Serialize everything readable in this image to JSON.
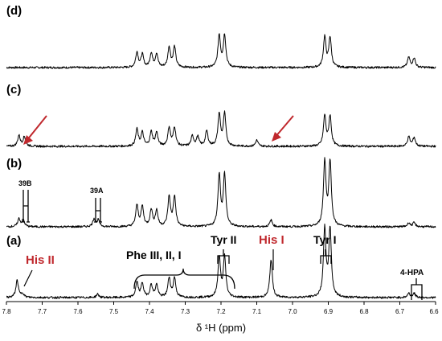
{
  "chart_data": {
    "type": "line",
    "xlabel": "δ ¹H (ppm)",
    "xlim": [
      7.8,
      6.6
    ],
    "x_ticks": [
      "7.8",
      "7.7",
      "7.6",
      "7.5",
      "7.4",
      "7.3",
      "7.2",
      "7.1",
      "7.0",
      "6.9",
      "6.8",
      "6.7",
      "6.6"
    ],
    "x_reversed": true,
    "grid": false,
    "panels": [
      {
        "label": "(d)",
        "peaks": [
          {
            "ppm": 7.435,
            "height": 0.45
          },
          {
            "ppm": 7.42,
            "height": 0.38
          },
          {
            "ppm": 7.395,
            "height": 0.42
          },
          {
            "ppm": 7.38,
            "height": 0.4
          },
          {
            "ppm": 7.345,
            "height": 0.6
          },
          {
            "ppm": 7.33,
            "height": 0.6
          },
          {
            "ppm": 7.205,
            "height": 0.95
          },
          {
            "ppm": 7.19,
            "height": 0.95
          },
          {
            "ppm": 6.91,
            "height": 0.9
          },
          {
            "ppm": 6.895,
            "height": 0.88
          },
          {
            "ppm": 6.675,
            "height": 0.3
          },
          {
            "ppm": 6.66,
            "height": 0.28
          }
        ]
      },
      {
        "label": "(c)",
        "peaks": [
          {
            "ppm": 7.765,
            "height": 0.32
          },
          {
            "ppm": 7.75,
            "height": 0.28
          },
          {
            "ppm": 7.435,
            "height": 0.5
          },
          {
            "ppm": 7.42,
            "height": 0.4
          },
          {
            "ppm": 7.395,
            "height": 0.42
          },
          {
            "ppm": 7.38,
            "height": 0.4
          },
          {
            "ppm": 7.345,
            "height": 0.55
          },
          {
            "ppm": 7.33,
            "height": 0.55
          },
          {
            "ppm": 7.28,
            "height": 0.3
          },
          {
            "ppm": 7.265,
            "height": 0.28
          },
          {
            "ppm": 7.24,
            "height": 0.45
          },
          {
            "ppm": 7.205,
            "height": 0.95
          },
          {
            "ppm": 7.19,
            "height": 0.95
          },
          {
            "ppm": 7.1,
            "height": 0.18
          },
          {
            "ppm": 6.91,
            "height": 0.9
          },
          {
            "ppm": 6.895,
            "height": 0.88
          },
          {
            "ppm": 6.675,
            "height": 0.28
          },
          {
            "ppm": 6.66,
            "height": 0.26
          }
        ]
      },
      {
        "label": "(b)",
        "peaks": [
          {
            "ppm": 7.765,
            "height": 0.12
          },
          {
            "ppm": 7.753,
            "height": 0.1
          },
          {
            "ppm": 7.555,
            "height": 0.12
          },
          {
            "ppm": 7.543,
            "height": 0.1
          },
          {
            "ppm": 7.435,
            "height": 0.32
          },
          {
            "ppm": 7.42,
            "height": 0.3
          },
          {
            "ppm": 7.395,
            "height": 0.25
          },
          {
            "ppm": 7.38,
            "height": 0.24
          },
          {
            "ppm": 7.345,
            "height": 0.45
          },
          {
            "ppm": 7.33,
            "height": 0.45
          },
          {
            "ppm": 7.205,
            "height": 0.78
          },
          {
            "ppm": 7.19,
            "height": 0.78
          },
          {
            "ppm": 7.06,
            "height": 0.1
          },
          {
            "ppm": 6.91,
            "height": 0.98
          },
          {
            "ppm": 6.895,
            "height": 0.98
          },
          {
            "ppm": 6.675,
            "height": 0.06
          },
          {
            "ppm": 6.66,
            "height": 0.06
          }
        ]
      },
      {
        "label": "(a)",
        "peaks": [
          {
            "ppm": 7.77,
            "height": 0.25
          },
          {
            "ppm": 7.755,
            "height": 0.06
          },
          {
            "ppm": 7.545,
            "height": 0.05
          },
          {
            "ppm": 7.435,
            "height": 0.22
          },
          {
            "ppm": 7.42,
            "height": 0.2
          },
          {
            "ppm": 7.395,
            "height": 0.18
          },
          {
            "ppm": 7.38,
            "height": 0.18
          },
          {
            "ppm": 7.345,
            "height": 0.28
          },
          {
            "ppm": 7.33,
            "height": 0.28
          },
          {
            "ppm": 7.205,
            "height": 0.58
          },
          {
            "ppm": 7.19,
            "height": 0.58
          },
          {
            "ppm": 7.06,
            "height": 0.55
          },
          {
            "ppm": 6.91,
            "height": 0.98
          },
          {
            "ppm": 6.895,
            "height": 0.98
          },
          {
            "ppm": 6.675,
            "height": 0.06
          },
          {
            "ppm": 6.66,
            "height": 0.06
          }
        ]
      }
    ],
    "annotations": [
      {
        "text": "39B",
        "panel": "(b)",
        "ppm": 7.76,
        "color": "#000000"
      },
      {
        "text": "39A",
        "panel": "(b)",
        "ppm": 7.55,
        "color": "#000000"
      },
      {
        "text": "His II",
        "panel": "(a)",
        "ppm": 7.77,
        "color": "#c0282d"
      },
      {
        "text": "Phe III, II, I",
        "panel": "(a)",
        "ppm": 7.39,
        "color": "#000000"
      },
      {
        "text": "Tyr II",
        "panel": "(a)",
        "ppm": 7.2,
        "color": "#000000"
      },
      {
        "text": "His I",
        "panel": "(a)",
        "ppm": 7.06,
        "color": "#c0282d"
      },
      {
        "text": "Tyr I",
        "panel": "(a)",
        "ppm": 6.9,
        "color": "#000000"
      },
      {
        "text": "4-HPA",
        "panel": "(a)",
        "ppm": 6.665,
        "color": "#000000"
      }
    ],
    "arrows": [
      {
        "panel": "(c)",
        "ppm": 7.76,
        "color": "#c0282d"
      },
      {
        "panel": "(c)",
        "ppm": 7.06,
        "color": "#c0282d"
      }
    ]
  }
}
